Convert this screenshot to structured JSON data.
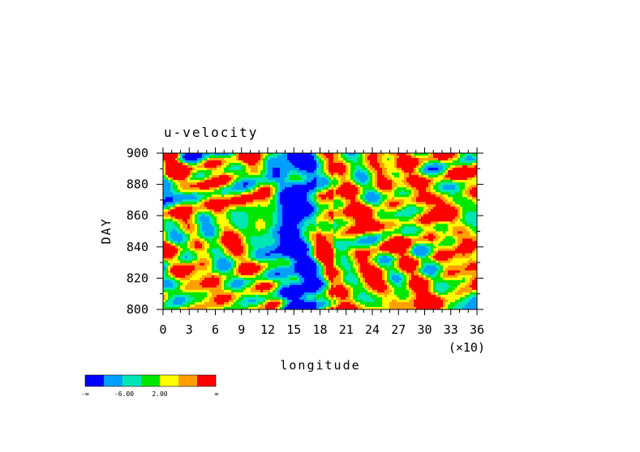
{
  "chart_data": {
    "type": "heatmap",
    "title": "u-velocity",
    "xlabel": "longitude",
    "ylabel": "DAY",
    "x_multiplier_label": "(×10)",
    "xlim": [
      0,
      36
    ],
    "ylim": [
      800,
      900
    ],
    "x_ticks": [
      0,
      3,
      6,
      9,
      12,
      15,
      18,
      21,
      24,
      27,
      30,
      33,
      36
    ],
    "y_ticks": [
      800,
      820,
      840,
      860,
      880,
      900
    ],
    "colorbar": {
      "colors": [
        "#0000ff",
        "#00a0ff",
        "#00e6b4",
        "#00e600",
        "#ffff00",
        "#ffa000",
        "#ff0000"
      ],
      "labels": [
        "-∞",
        "-6.00",
        "2.00",
        "∞"
      ]
    }
  }
}
